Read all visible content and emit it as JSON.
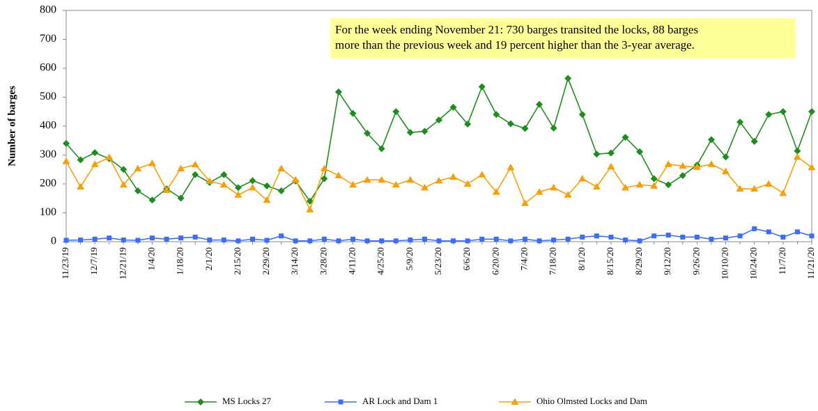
{
  "chart_data": {
    "type": "line",
    "y_label": "Number of barges",
    "annotation": [
      "For the week ending November 21: 730 barges transited the locks, 88 barges",
      "more than the previous week and 19 percent higher than the 3-year average."
    ],
    "categories": [
      "11/23/19",
      null,
      "12/7/19",
      null,
      "12/21/19",
      null,
      "1/4/20",
      null,
      "1/18/20",
      null,
      "2/1/20",
      null,
      "2/15/20",
      null,
      "2/29/20",
      null,
      "3/14/20",
      null,
      "3/28/20",
      null,
      "4/11/20",
      null,
      "4/25/20",
      null,
      "5/9/20",
      null,
      "5/23/20",
      null,
      "6/6/20",
      null,
      "6/20/20",
      null,
      "7/4/20",
      null,
      "7/18/20",
      null,
      "8/1/20",
      null,
      "8/15/20",
      null,
      "8/29/20",
      null,
      "9/12/20",
      null,
      "9/26/20",
      null,
      "10/10/20",
      null,
      "10/24/20",
      null,
      "11/7/20",
      null,
      "11/21/20"
    ],
    "series": [
      {
        "name": "MS Locks 27",
        "color": "#1e8c1e",
        "marker": "diamond",
        "values": [
          340,
          283,
          308,
          287,
          250,
          176,
          144,
          183,
          151,
          232,
          205,
          232,
          187,
          211,
          193,
          176,
          210,
          140,
          218,
          518,
          444,
          375,
          322,
          450,
          378,
          382,
          421,
          465,
          407,
          536,
          440,
          408,
          392,
          475,
          393,
          565,
          440,
          303,
          307,
          361,
          311,
          218,
          197,
          229,
          265,
          353,
          293,
          414,
          347,
          440,
          450,
          314,
          450
        ]
      },
      {
        "name": "AR Lock and Dam 1",
        "color": "#3d6ef0",
        "marker": "square",
        "values": [
          5,
          6,
          9,
          13,
          6,
          5,
          13,
          9,
          13,
          16,
          6,
          6,
          3,
          9,
          5,
          20,
          3,
          3,
          9,
          3,
          9,
          3,
          3,
          3,
          6,
          9,
          3,
          3,
          3,
          9,
          9,
          3,
          9,
          3,
          6,
          9,
          16,
          20,
          16,
          6,
          3,
          20,
          23,
          16,
          16,
          9,
          13,
          20,
          45,
          34,
          16,
          34,
          20
        ]
      },
      {
        "name": "Ohio Olmsted Locks and Dam",
        "color": "#f5a00a",
        "marker": "triangle",
        "values": [
          278,
          190,
          268,
          292,
          197,
          253,
          271,
          178,
          253,
          267,
          210,
          197,
          162,
          187,
          144,
          253,
          214,
          111,
          253,
          229,
          197,
          214,
          214,
          197,
          214,
          187,
          211,
          224,
          200,
          232,
          172,
          257,
          133,
          172,
          187,
          162,
          218,
          190,
          260,
          187,
          197,
          193,
          268,
          262,
          258,
          268,
          243,
          183,
          183,
          200,
          168,
          293,
          257
        ]
      }
    ],
    "ylim": [
      0,
      800
    ],
    "yticks": [
      0,
      100,
      200,
      300,
      400,
      500,
      600,
      700,
      800
    ],
    "grid": false,
    "legend": "bottom",
    "annotation_color": "#ffff99"
  }
}
